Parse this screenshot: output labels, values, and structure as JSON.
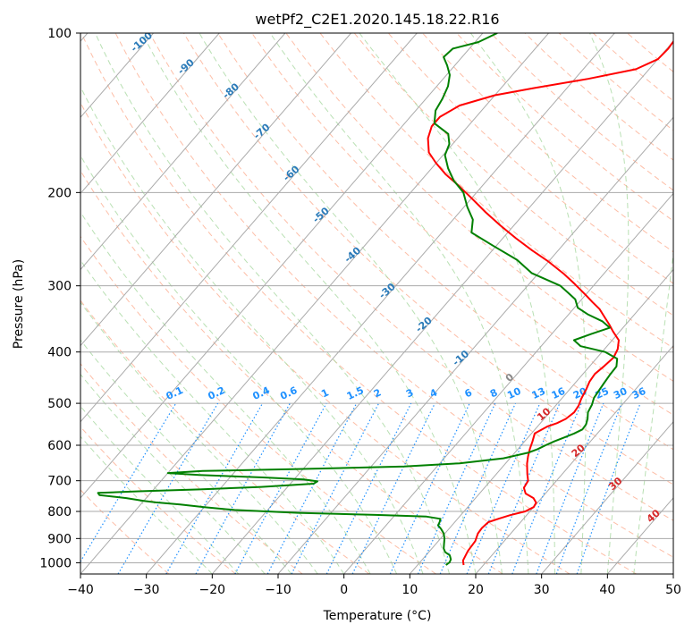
{
  "chart_data": {
    "type": "line",
    "title": "wetPf2_C2E1.2020.145.18.22.R16",
    "xlabel": "Temperature (°C)",
    "ylabel": "Pressure (hPa)",
    "xlim": [
      -40,
      50
    ],
    "ylim": [
      1050,
      100
    ],
    "y_scale": "log",
    "x_ticks": [
      "−40",
      "−30",
      "−20",
      "−10",
      "0",
      "10",
      "20",
      "30",
      "40",
      "50"
    ],
    "x_tick_values": [
      -40,
      -30,
      -20,
      -10,
      0,
      10,
      20,
      30,
      40,
      50
    ],
    "y_ticks": [
      "100",
      "200",
      "300",
      "400",
      "500",
      "600",
      "700",
      "800",
      "900",
      "1000"
    ],
    "y_tick_values": [
      100,
      200,
      300,
      400,
      500,
      600,
      700,
      800,
      900,
      1000
    ],
    "grid": true,
    "skew_deg_per_decade": 69.6,
    "colors": {
      "temperature": "#ff0000",
      "dewpoint": "#008000",
      "isotherm": "#aaaaaa",
      "dry_adiabat": "#fcae91",
      "moist_adiabat": "#a8d8a0",
      "mixing_ratio": "#1e90ff",
      "isotherm_label": "#2b7bb9",
      "isotherm_label_warm": "#d62728"
    },
    "series": [
      {
        "color": "#ff0000",
        "points": [
          [
            17.0,
            1010
          ],
          [
            16.3,
            990
          ],
          [
            15.8,
            950
          ],
          [
            15.6,
            910
          ],
          [
            15.0,
            880
          ],
          [
            14.9,
            860
          ],
          [
            15.1,
            838
          ],
          [
            16.3,
            825
          ],
          [
            17.5,
            813
          ],
          [
            19.3,
            800
          ],
          [
            20.0,
            785
          ],
          [
            19.8,
            770
          ],
          [
            18.8,
            755
          ],
          [
            17.0,
            740
          ],
          [
            16.0,
            722
          ],
          [
            15.7,
            700
          ],
          [
            14.7,
            680
          ],
          [
            13.3,
            650
          ],
          [
            12.5,
            630
          ],
          [
            11.8,
            610
          ],
          [
            11.2,
            590
          ],
          [
            10.5,
            570
          ],
          [
            11.5,
            553
          ],
          [
            12.5,
            545
          ],
          [
            13.3,
            535
          ],
          [
            13.7,
            520
          ],
          [
            13.5,
            505
          ],
          [
            13.0,
            490
          ],
          [
            12.5,
            470
          ],
          [
            12.0,
            455
          ],
          [
            11.8,
            440
          ],
          [
            12.2,
            425
          ],
          [
            12.5,
            410
          ],
          [
            12.0,
            395
          ],
          [
            11.0,
            380
          ],
          [
            9.0,
            366
          ],
          [
            7.5,
            355
          ],
          [
            6.0,
            345
          ],
          [
            4.0,
            332
          ],
          [
            2.0,
            322
          ],
          [
            0.0,
            312
          ],
          [
            -3.0,
            298
          ],
          [
            -6.0,
            285
          ],
          [
            -10.0,
            270
          ],
          [
            -14.0,
            257
          ],
          [
            -18.0,
            244
          ],
          [
            -22.0,
            231
          ],
          [
            -26.0,
            218
          ],
          [
            -30.0,
            205
          ],
          [
            -34.0,
            193
          ],
          [
            -37.0,
            185
          ],
          [
            -40.0,
            176
          ],
          [
            -42.5,
            168
          ],
          [
            -44.5,
            158
          ],
          [
            -45.5,
            150
          ],
          [
            -45.5,
            144
          ],
          [
            -44.0,
            137
          ],
          [
            -40.0,
            131
          ],
          [
            -35.0,
            127
          ],
          [
            -28.0,
            122
          ],
          [
            -22.0,
            117
          ],
          [
            -20.0,
            112
          ],
          [
            -19.8,
            107
          ],
          [
            -20.0,
            103
          ],
          [
            -20.3,
            100
          ]
        ]
      },
      {
        "color": "#008000",
        "points": [
          [
            14.3,
            1010
          ],
          [
            14.5,
            998
          ],
          [
            14.3,
            985
          ],
          [
            13.6,
            968
          ],
          [
            12.5,
            955
          ],
          [
            11.8,
            940
          ],
          [
            11.2,
            920
          ],
          [
            10.6,
            900
          ],
          [
            9.8,
            880
          ],
          [
            8.8,
            863
          ],
          [
            7.9,
            850
          ],
          [
            7.7,
            838
          ],
          [
            7.4,
            826
          ],
          [
            5.0,
            818
          ],
          [
            -3.0,
            812
          ],
          [
            -15.0,
            805
          ],
          [
            -25.0,
            795
          ],
          [
            -30.0,
            785
          ],
          [
            -34.0,
            776
          ],
          [
            -38.0,
            769
          ],
          [
            -40.0,
            764
          ],
          [
            -43.0,
            755
          ],
          [
            -47.5,
            745
          ],
          [
            -48.0,
            738
          ],
          [
            -42.0,
            733
          ],
          [
            -33.0,
            727
          ],
          [
            -24.0,
            719
          ],
          [
            -16.5,
            709
          ],
          [
            -16.2,
            702
          ],
          [
            -18.5,
            696
          ],
          [
            -25.0,
            690
          ],
          [
            -35.0,
            683
          ],
          [
            -40.0,
            677
          ],
          [
            -35.0,
            671
          ],
          [
            -20.0,
            665
          ],
          [
            -5.0,
            658
          ],
          [
            3.0,
            649
          ],
          [
            9.0,
            635
          ],
          [
            12.0,
            620
          ],
          [
            13.0,
            610
          ],
          [
            13.7,
            600
          ],
          [
            14.5,
            590
          ],
          [
            15.5,
            580
          ],
          [
            16.5,
            570
          ],
          [
            17.2,
            560
          ],
          [
            17.1,
            548
          ],
          [
            16.6,
            535
          ],
          [
            15.8,
            520
          ],
          [
            15.4,
            503
          ],
          [
            14.8,
            488
          ],
          [
            14.6,
            473
          ],
          [
            14.4,
            458
          ],
          [
            14.2,
            442
          ],
          [
            14.1,
            426
          ],
          [
            13.2,
            412
          ],
          [
            10.5,
            400
          ],
          [
            6.0,
            390
          ],
          [
            4.2,
            380
          ],
          [
            6.0,
            370
          ],
          [
            8.0,
            360
          ],
          [
            6.0,
            350
          ],
          [
            3.0,
            340
          ],
          [
            0.5,
            330
          ],
          [
            -1.0,
            318
          ],
          [
            -5.0,
            300
          ],
          [
            -11.0,
            284
          ],
          [
            -15.0,
            268
          ],
          [
            -20.5,
            252
          ],
          [
            -25.5,
            238
          ],
          [
            -27.0,
            225
          ],
          [
            -29.5,
            213
          ],
          [
            -32.0,
            200
          ],
          [
            -35.0,
            190
          ],
          [
            -37.5,
            180
          ],
          [
            -39.7,
            170
          ],
          [
            -40.5,
            162
          ],
          [
            -42.0,
            155
          ],
          [
            -45.5,
            148
          ],
          [
            -47.0,
            140
          ],
          [
            -47.5,
            133
          ],
          [
            -48.3,
            126
          ],
          [
            -49.5,
            120
          ],
          [
            -51.2,
            115
          ],
          [
            -52.8,
            111
          ],
          [
            -52.5,
            107
          ],
          [
            -49.5,
            104
          ],
          [
            -47.8,
            100
          ]
        ]
      }
    ],
    "isotherm_labels": [
      {
        "text": "-100",
        "t": -100,
        "p": 105
      },
      {
        "text": "-90",
        "t": -90,
        "p": 117
      },
      {
        "text": "-80",
        "t": -80,
        "p": 130
      },
      {
        "text": "-70",
        "t": -70,
        "p": 155
      },
      {
        "text": "-60",
        "t": -60,
        "p": 186
      },
      {
        "text": "-50",
        "t": -50,
        "p": 223
      },
      {
        "text": "-40",
        "t": -40,
        "p": 265
      },
      {
        "text": "-30",
        "t": -30,
        "p": 310
      },
      {
        "text": "-20",
        "t": -20,
        "p": 359
      },
      {
        "text": "-10",
        "t": -10,
        "p": 415
      },
      {
        "text": "0",
        "t": 0,
        "p": 452
      },
      {
        "text": "10",
        "t": 10,
        "p": 530
      },
      {
        "text": "20",
        "t": 20,
        "p": 621
      },
      {
        "text": "30",
        "t": 30,
        "p": 717
      },
      {
        "text": "40",
        "t": 40,
        "p": 825
      }
    ],
    "mixing_ratio_labels": [
      "0.1",
      "0.2",
      "0.4",
      "0.6",
      "1",
      "1.5",
      "2",
      "3",
      "4",
      "6",
      "8",
      "10",
      "13",
      "16",
      "20",
      "25",
      "30",
      "36"
    ],
    "mixing_ratio_values": [
      0.1,
      0.2,
      0.4,
      0.6,
      1,
      1.5,
      2,
      3,
      4,
      6,
      8,
      10,
      13,
      16,
      20,
      25,
      30,
      36
    ]
  }
}
